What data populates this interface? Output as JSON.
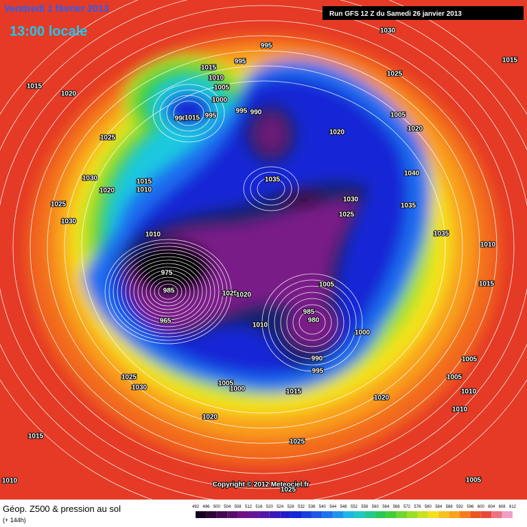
{
  "header": {
    "date": "Vendredi 1 février 2013",
    "time": "13:00 locale",
    "run": "Run GFS 12 Z du Samedi 26 janvier 2013"
  },
  "map": {
    "isobar_labels": [
      1030,
      995,
      1015,
      995,
      1015,
      1025,
      1015,
      1010,
      1020,
      1005,
      1000,
      995,
      990,
      1005,
      990,
      1015,
      995,
      1020,
      1020,
      1025,
      1040,
      1030,
      1035,
      1015,
      1020,
      1010,
      1030,
      1025,
      1035,
      1025,
      1030,
      1035,
      1010,
      1010,
      1015,
      1005,
      975,
      985,
      1025,
      1020,
      965,
      985,
      980,
      1010,
      1000,
      990,
      1005,
      995,
      1025,
      1005,
      1005,
      1030,
      1000,
      1015,
      1010,
      1020,
      1010,
      1020,
      1015,
      1025,
      1005,
      1010,
      1025
    ]
  },
  "copyright": "Copyright © 2012 Meteociel.fr",
  "footer": {
    "title": "Géop. Z500 & pression au sol",
    "subtitle": "(+ 144h)",
    "scale": [
      492,
      496,
      500,
      504,
      508,
      512,
      516,
      520,
      524,
      528,
      532,
      536,
      540,
      544,
      548,
      552,
      556,
      560,
      564,
      568,
      572,
      576,
      580,
      584,
      588,
      592,
      596,
      600,
      604,
      608,
      612
    ]
  }
}
